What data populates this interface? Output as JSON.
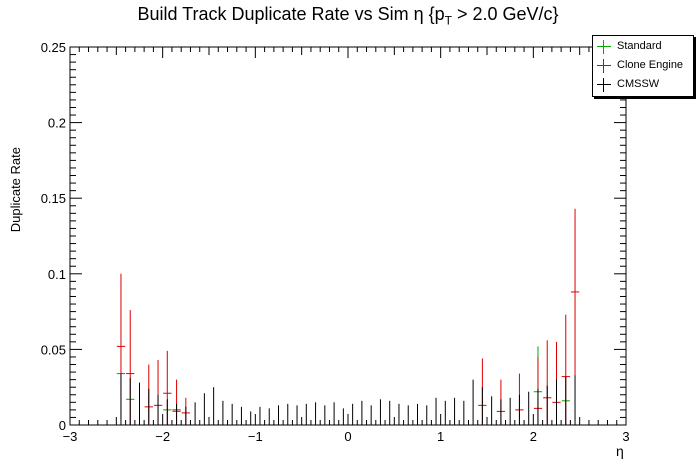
{
  "title_main": "Build Track Duplicate Rate vs Sim η {p",
  "title_sub": "T",
  "title_tail": " > 2.0 GeV/c}",
  "ylabel": "Duplicate Rate",
  "xlabel": "η",
  "legend": {
    "standard": "Standard",
    "clone_engine": "Clone Engine",
    "cmssw": "CMSSW"
  },
  "colors": {
    "standard": "#00aa00",
    "clone_engine": "#dd0000",
    "cmssw": "#000000"
  },
  "chart_data": {
    "type": "scatter",
    "title": "Build Track Duplicate Rate vs Sim η {pT > 2.0 GeV/c}",
    "xlabel": "η",
    "ylabel": "Duplicate Rate",
    "xlim": [
      -3,
      3
    ],
    "ylim": [
      0,
      0.25
    ],
    "xticks": [
      -3,
      -2,
      -1,
      0,
      1,
      2,
      3
    ],
    "yticks": [
      0,
      0.05,
      0.1,
      0.15,
      0.2,
      0.25
    ],
    "ytick_labels": [
      "0",
      "0.05",
      "0.1",
      "0.15",
      "0.2",
      "0.25"
    ],
    "legend_position": "top-right",
    "grid": false,
    "series": [
      {
        "name": "Standard",
        "color": "#00aa00",
        "points": [
          {
            "x": -2.45,
            "y": 0.034,
            "err": 0.0
          },
          {
            "x": -2.35,
            "y": 0.017,
            "err": 0.0
          },
          {
            "x": -1.95,
            "y": 0.01,
            "err": 0.0
          },
          {
            "x": -1.85,
            "y": 0.009,
            "err": 0.0
          },
          {
            "x": 2.05,
            "y": 0.022,
            "err": 0.03
          },
          {
            "x": 2.35,
            "y": 0.016,
            "err": 0.0
          }
        ]
      },
      {
        "name": "Clone Engine",
        "color": "#dd0000",
        "points": [
          {
            "x": -2.45,
            "y": 0.052,
            "err": 0.048
          },
          {
            "x": -2.35,
            "y": 0.034,
            "err": 0.042
          },
          {
            "x": -2.15,
            "y": 0.012,
            "err": 0.028
          },
          {
            "x": -2.05,
            "y": 0.013,
            "err": 0.03
          },
          {
            "x": -1.95,
            "y": 0.021,
            "err": 0.028
          },
          {
            "x": -1.85,
            "y": 0.01,
            "err": 0.02
          },
          {
            "x": -1.75,
            "y": 0.008,
            "err": 0.01
          },
          {
            "x": 1.45,
            "y": 0.013,
            "err": 0.031
          },
          {
            "x": 1.65,
            "y": 0.009,
            "err": 0.021
          },
          {
            "x": 1.85,
            "y": 0.01,
            "err": 0.024
          },
          {
            "x": 2.05,
            "y": 0.011,
            "err": 0.034
          },
          {
            "x": 2.15,
            "y": 0.018,
            "err": 0.038
          },
          {
            "x": 2.25,
            "y": 0.015,
            "err": 0.04
          },
          {
            "x": 2.35,
            "y": 0.032,
            "err": 0.041
          },
          {
            "x": 2.45,
            "y": 0.088,
            "err": 0.055
          }
        ]
      },
      {
        "name": "CMSSW",
        "color": "#000000",
        "points": [
          {
            "x": -2.45,
            "y": 0.0,
            "err": 0.034
          },
          {
            "x": -2.35,
            "y": 0.0,
            "err": 0.031
          },
          {
            "x": -2.25,
            "y": 0.0,
            "err": 0.028
          },
          {
            "x": -2.15,
            "y": 0.0,
            "err": 0.024
          },
          {
            "x": -2.05,
            "y": 0.0,
            "err": 0.02
          },
          {
            "x": -1.95,
            "y": 0.0,
            "err": 0.017
          },
          {
            "x": -1.85,
            "y": 0.0,
            "err": 0.014
          },
          {
            "x": -1.75,
            "y": 0.0,
            "err": 0.012
          },
          {
            "x": -1.65,
            "y": 0.0,
            "err": 0.015
          },
          {
            "x": -1.55,
            "y": 0.0,
            "err": 0.021
          },
          {
            "x": -1.45,
            "y": 0.0,
            "err": 0.025
          },
          {
            "x": -1.35,
            "y": 0.0,
            "err": 0.016
          },
          {
            "x": -1.25,
            "y": 0.0,
            "err": 0.014
          },
          {
            "x": -1.15,
            "y": 0.0,
            "err": 0.012
          },
          {
            "x": -1.05,
            "y": 0.0,
            "err": 0.009
          },
          {
            "x": -0.95,
            "y": 0.0,
            "err": 0.012
          },
          {
            "x": -0.85,
            "y": 0.0,
            "err": 0.011
          },
          {
            "x": -0.75,
            "y": 0.0,
            "err": 0.013
          },
          {
            "x": -0.65,
            "y": 0.0,
            "err": 0.014
          },
          {
            "x": -0.55,
            "y": 0.0,
            "err": 0.013
          },
          {
            "x": -0.45,
            "y": 0.0,
            "err": 0.014
          },
          {
            "x": -0.35,
            "y": 0.0,
            "err": 0.015
          },
          {
            "x": -0.25,
            "y": 0.0,
            "err": 0.013
          },
          {
            "x": -0.15,
            "y": 0.0,
            "err": 0.015
          },
          {
            "x": -0.05,
            "y": 0.0,
            "err": 0.011
          },
          {
            "x": 0.05,
            "y": 0.0,
            "err": 0.014
          },
          {
            "x": 0.15,
            "y": 0.0,
            "err": 0.016
          },
          {
            "x": 0.25,
            "y": 0.0,
            "err": 0.013
          },
          {
            "x": 0.35,
            "y": 0.0,
            "err": 0.017
          },
          {
            "x": 0.45,
            "y": 0.0,
            "err": 0.016
          },
          {
            "x": 0.55,
            "y": 0.0,
            "err": 0.014
          },
          {
            "x": 0.65,
            "y": 0.0,
            "err": 0.013
          },
          {
            "x": 0.75,
            "y": 0.0,
            "err": 0.014
          },
          {
            "x": 0.85,
            "y": 0.0,
            "err": 0.013
          },
          {
            "x": 0.95,
            "y": 0.0,
            "err": 0.018
          },
          {
            "x": 1.05,
            "y": 0.0,
            "err": 0.016
          },
          {
            "x": 1.15,
            "y": 0.0,
            "err": 0.018
          },
          {
            "x": 1.25,
            "y": 0.0,
            "err": 0.016
          },
          {
            "x": 1.35,
            "y": 0.0,
            "err": 0.03
          },
          {
            "x": 1.45,
            "y": 0.0,
            "err": 0.025
          },
          {
            "x": 1.55,
            "y": 0.0,
            "err": 0.019
          },
          {
            "x": 1.65,
            "y": 0.0,
            "err": 0.017
          },
          {
            "x": 1.75,
            "y": 0.0,
            "err": 0.018
          },
          {
            "x": 1.85,
            "y": 0.0,
            "err": 0.02
          },
          {
            "x": 1.95,
            "y": 0.0,
            "err": 0.022
          },
          {
            "x": 2.05,
            "y": 0.0,
            "err": 0.024
          },
          {
            "x": 2.15,
            "y": 0.0,
            "err": 0.026
          },
          {
            "x": 2.25,
            "y": 0.0,
            "err": 0.03
          },
          {
            "x": 2.35,
            "y": 0.0,
            "err": 0.032
          },
          {
            "x": 2.45,
            "y": 0.0,
            "err": 0.033
          }
        ]
      }
    ]
  }
}
